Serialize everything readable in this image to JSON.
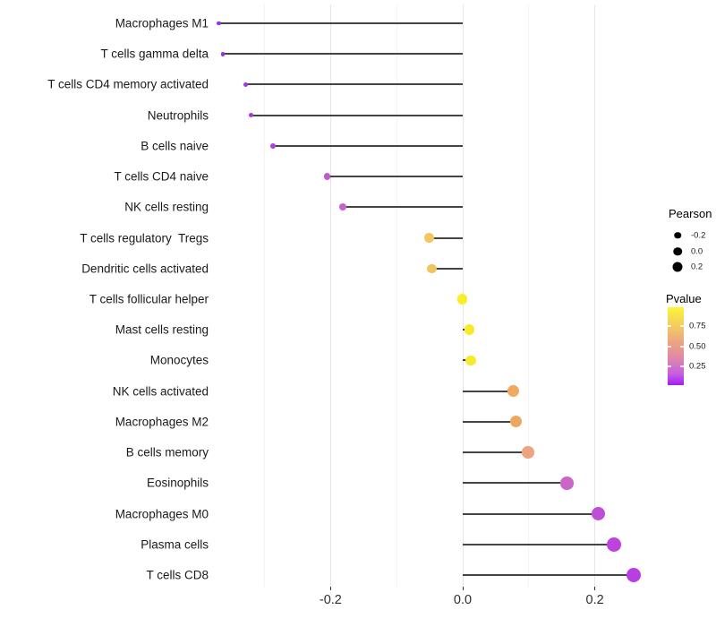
{
  "chart_data": {
    "type": "lollipop",
    "orientation": "horizontal",
    "title": "",
    "xlabel": "",
    "ylabel": "",
    "xlim": [
      -0.375,
      0.29
    ],
    "grid": {
      "major_x": [
        -0.2,
        0.0,
        0.2
      ],
      "minor_x": [
        -0.3,
        -0.1,
        0.1
      ]
    },
    "x_axis": {
      "tick_values": [
        -0.2,
        0.0,
        0.2
      ],
      "tick_labels": [
        "-0.2",
        "0.0",
        "0.2"
      ]
    },
    "stem_color": "#444444",
    "rows": [
      {
        "label": "Macrophages M1",
        "pearson": -0.369,
        "dot_color": "#9b2ee6"
      },
      {
        "label": "T cells gamma delta",
        "pearson": -0.363,
        "dot_color": "#9d30e5"
      },
      {
        "label": "T cells CD4 memory activated",
        "pearson": -0.328,
        "dot_color": "#a437e2"
      },
      {
        "label": "Neutrophils",
        "pearson": -0.321,
        "dot_color": "#a538e2"
      },
      {
        "label": "B cells naive",
        "pearson": -0.287,
        "dot_color": "#ac41de"
      },
      {
        "label": "T cells CD4 naive",
        "pearson": -0.205,
        "dot_color": "#c35acb"
      },
      {
        "label": "NK cells resting",
        "pearson": -0.181,
        "dot_color": "#c762c6"
      },
      {
        "label": "T cells regulatory  Tregs",
        "pearson": -0.051,
        "dot_color": "#f2c75e"
      },
      {
        "label": "Dendritic cells activated",
        "pearson": -0.047,
        "dot_color": "#f1c55d"
      },
      {
        "label": "T cells follicular helper",
        "pearson": -0.001,
        "dot_color": "#f8ee27"
      },
      {
        "label": "Mast cells resting",
        "pearson": 0.01,
        "dot_color": "#f8eb29"
      },
      {
        "label": "Monocytes",
        "pearson": 0.012,
        "dot_color": "#f7e92b"
      },
      {
        "label": "NK cells activated",
        "pearson": 0.076,
        "dot_color": "#efaa61"
      },
      {
        "label": "Macrophages M2",
        "pearson": 0.08,
        "dot_color": "#eea75f"
      },
      {
        "label": "B cells memory",
        "pearson": 0.099,
        "dot_color": "#eca580"
      },
      {
        "label": "Eosinophils",
        "pearson": 0.158,
        "dot_color": "#cb66c8"
      },
      {
        "label": "Macrophages M0",
        "pearson": 0.205,
        "dot_color": "#bf4ed7"
      },
      {
        "label": "Plasma cells",
        "pearson": 0.229,
        "dot_color": "#bb44dc"
      },
      {
        "label": "T cells CD8",
        "pearson": 0.259,
        "dot_color": "#b73ee1"
      }
    ],
    "legend_size": {
      "title": "Pearson",
      "items": [
        {
          "label": "-0.2",
          "diameter": 7.5
        },
        {
          "label": "0.0",
          "diameter": 9.5
        },
        {
          "label": "0.2",
          "diameter": 11
        }
      ]
    },
    "legend_color": {
      "title": "Pvalue",
      "tick_labels": [
        "0.75",
        "0.50",
        "0.25"
      ],
      "gradient_stops": [
        "#fcf536",
        "#f6dc52",
        "#f1c368",
        "#eca87e",
        "#e69397",
        "#d97cbb",
        "#c55ee0",
        "#a21ef4"
      ]
    }
  }
}
